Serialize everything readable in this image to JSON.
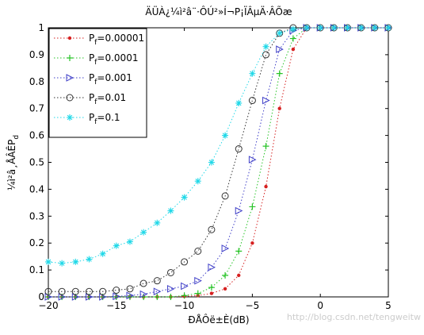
{
  "chart_data": {
    "type": "line",
    "title": "ÄÜÀ¿¼ì²â¨·ÔÚ²»Í¬P¡ÏÂµÄ·ÂÕæ",
    "xlabel": "ÐÅÔë±È(dB)",
    "ylabel": "¼ì²â¸ÅÂÊP",
    "ylabel_subscript": "d",
    "xlim": [
      -20,
      5
    ],
    "ylim": [
      0,
      1
    ],
    "x_ticks": [
      -20,
      -15,
      -10,
      -5,
      0,
      5
    ],
    "x_tick_labels": [
      "−20",
      "−15",
      "−10",
      "−5",
      "0",
      "5"
    ],
    "y_ticks": [
      0,
      0.1,
      0.2,
      0.3,
      0.4,
      0.5,
      0.6,
      0.7,
      0.8,
      0.9,
      1
    ],
    "y_tick_labels": [
      "0",
      "0.1",
      "0.2",
      "0.3",
      "0.4",
      "0.5",
      "0.6",
      "0.7",
      "0.8",
      "0.9",
      "1"
    ],
    "grid": false,
    "legend_position": "top-left",
    "x": [
      -20,
      -19,
      -18,
      -17,
      -16,
      -15,
      -14,
      -13,
      -12,
      -11,
      -10,
      -9,
      -8,
      -7,
      -6,
      -5,
      -4,
      -3,
      -2,
      -1,
      0,
      1,
      2,
      3,
      4,
      5
    ],
    "series": [
      {
        "name": "P",
        "name_sub": "f",
        "name_value": "=0.00001",
        "color": "#d62020",
        "marker": "dot",
        "values": [
          0,
          0,
          0,
          0,
          0,
          0,
          0,
          0,
          0,
          0,
          0.002,
          0.005,
          0.013,
          0.03,
          0.08,
          0.2,
          0.41,
          0.7,
          0.92,
          1,
          1,
          1,
          1,
          1,
          1,
          1
        ]
      },
      {
        "name": "P",
        "name_sub": "f",
        "name_value": "=0.0001",
        "color": "#27c427",
        "marker": "plus",
        "values": [
          0,
          0,
          0,
          0,
          0,
          0,
          0,
          0,
          0,
          0,
          0.005,
          0.013,
          0.035,
          0.08,
          0.17,
          0.335,
          0.56,
          0.83,
          0.96,
          1,
          1,
          1,
          1,
          1,
          1,
          1
        ]
      },
      {
        "name": "P",
        "name_sub": "f",
        "name_value": "=0.001",
        "color": "#4040c8",
        "marker": "triangle-right",
        "values": [
          0,
          0,
          0,
          0,
          0,
          0.002,
          0.005,
          0.01,
          0.02,
          0.03,
          0.04,
          0.06,
          0.11,
          0.18,
          0.32,
          0.51,
          0.73,
          0.92,
          0.99,
          1,
          1,
          1,
          1,
          1,
          1,
          1
        ]
      },
      {
        "name": "P",
        "name_sub": "f",
        "name_value": "=0.01",
        "color": "#333333",
        "marker": "circle",
        "values": [
          0.02,
          0.02,
          0.02,
          0.02,
          0.02,
          0.025,
          0.03,
          0.05,
          0.06,
          0.09,
          0.13,
          0.17,
          0.25,
          0.375,
          0.55,
          0.73,
          0.9,
          0.98,
          1,
          1,
          1,
          1,
          1,
          1,
          1,
          1
        ]
      },
      {
        "name": "P",
        "name_sub": "f",
        "name_value": "=0.1",
        "color": "#20d8e8",
        "marker": "star",
        "values": [
          0.13,
          0.125,
          0.13,
          0.14,
          0.16,
          0.19,
          0.205,
          0.24,
          0.275,
          0.32,
          0.37,
          0.43,
          0.5,
          0.6,
          0.72,
          0.83,
          0.93,
          0.98,
          0.995,
          1,
          1,
          1,
          1,
          1,
          1,
          1
        ]
      }
    ]
  },
  "watermark": "http://blog.csdn.net/tengweitw"
}
